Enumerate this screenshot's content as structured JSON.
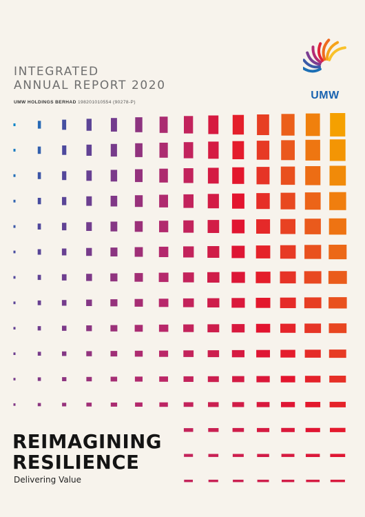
{
  "report": {
    "title_line1": "INTEGRATED",
    "title_line2": "ANNUAL REPORT 2020",
    "company_name": "UMW HOLDINGS BERHAD",
    "company_reg": "198201010554 (90278-P)"
  },
  "logo": {
    "text": "UMW",
    "icon": "umw-wing-icon",
    "text_color": "#1a63b0"
  },
  "theme": {
    "title": "REIMAGINING",
    "title_line2": "RESILIENCE",
    "subtitle": "Delivering Value"
  },
  "colors": {
    "background": "#f7f3ec",
    "mosaic_palette": [
      "#0c86c8",
      "#4a4a9e",
      "#7a3a8a",
      "#b8286a",
      "#e3142e",
      "#ea5a1c",
      "#f5a000"
    ]
  }
}
